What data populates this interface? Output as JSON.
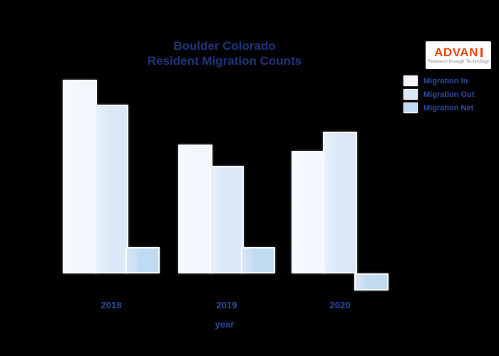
{
  "colors": {
    "background": "#000000",
    "title_text": "#1f3274",
    "axis_text": "#2a4896",
    "logo_orange": "#e8470e",
    "logo_tagline_gray": "#8c8c8c"
  },
  "header": {
    "title_line1": "Boulder Colorado",
    "title_line2": "Resident Migration Counts"
  },
  "logo": {
    "text": "ADVAN",
    "tagline": "Research through Technology"
  },
  "chart_data": {
    "type": "bar",
    "title": "Boulder Colorado Resident Migration Counts",
    "xlabel": "year",
    "ylabel": "",
    "categories": [
      "2018",
      "2019",
      "2020"
    ],
    "series": [
      {
        "name": "Migration In",
        "color": "#f3f7fd",
        "values": [
          272,
          181,
          172
        ]
      },
      {
        "name": "Migration Out",
        "color": "#dce8f8",
        "values": [
          237,
          151,
          199
        ]
      },
      {
        "name": "Migration Net",
        "color": "#c0daf2",
        "values": [
          37,
          37,
          -24
        ]
      }
    ],
    "value_unit": "relative units (no y-axis ticks shown; values estimated from bar heights)",
    "ylim": [
      -30,
      280
    ],
    "grid": false,
    "y_axis_visible": false,
    "legend_position": "top-right",
    "background": "#000000"
  }
}
